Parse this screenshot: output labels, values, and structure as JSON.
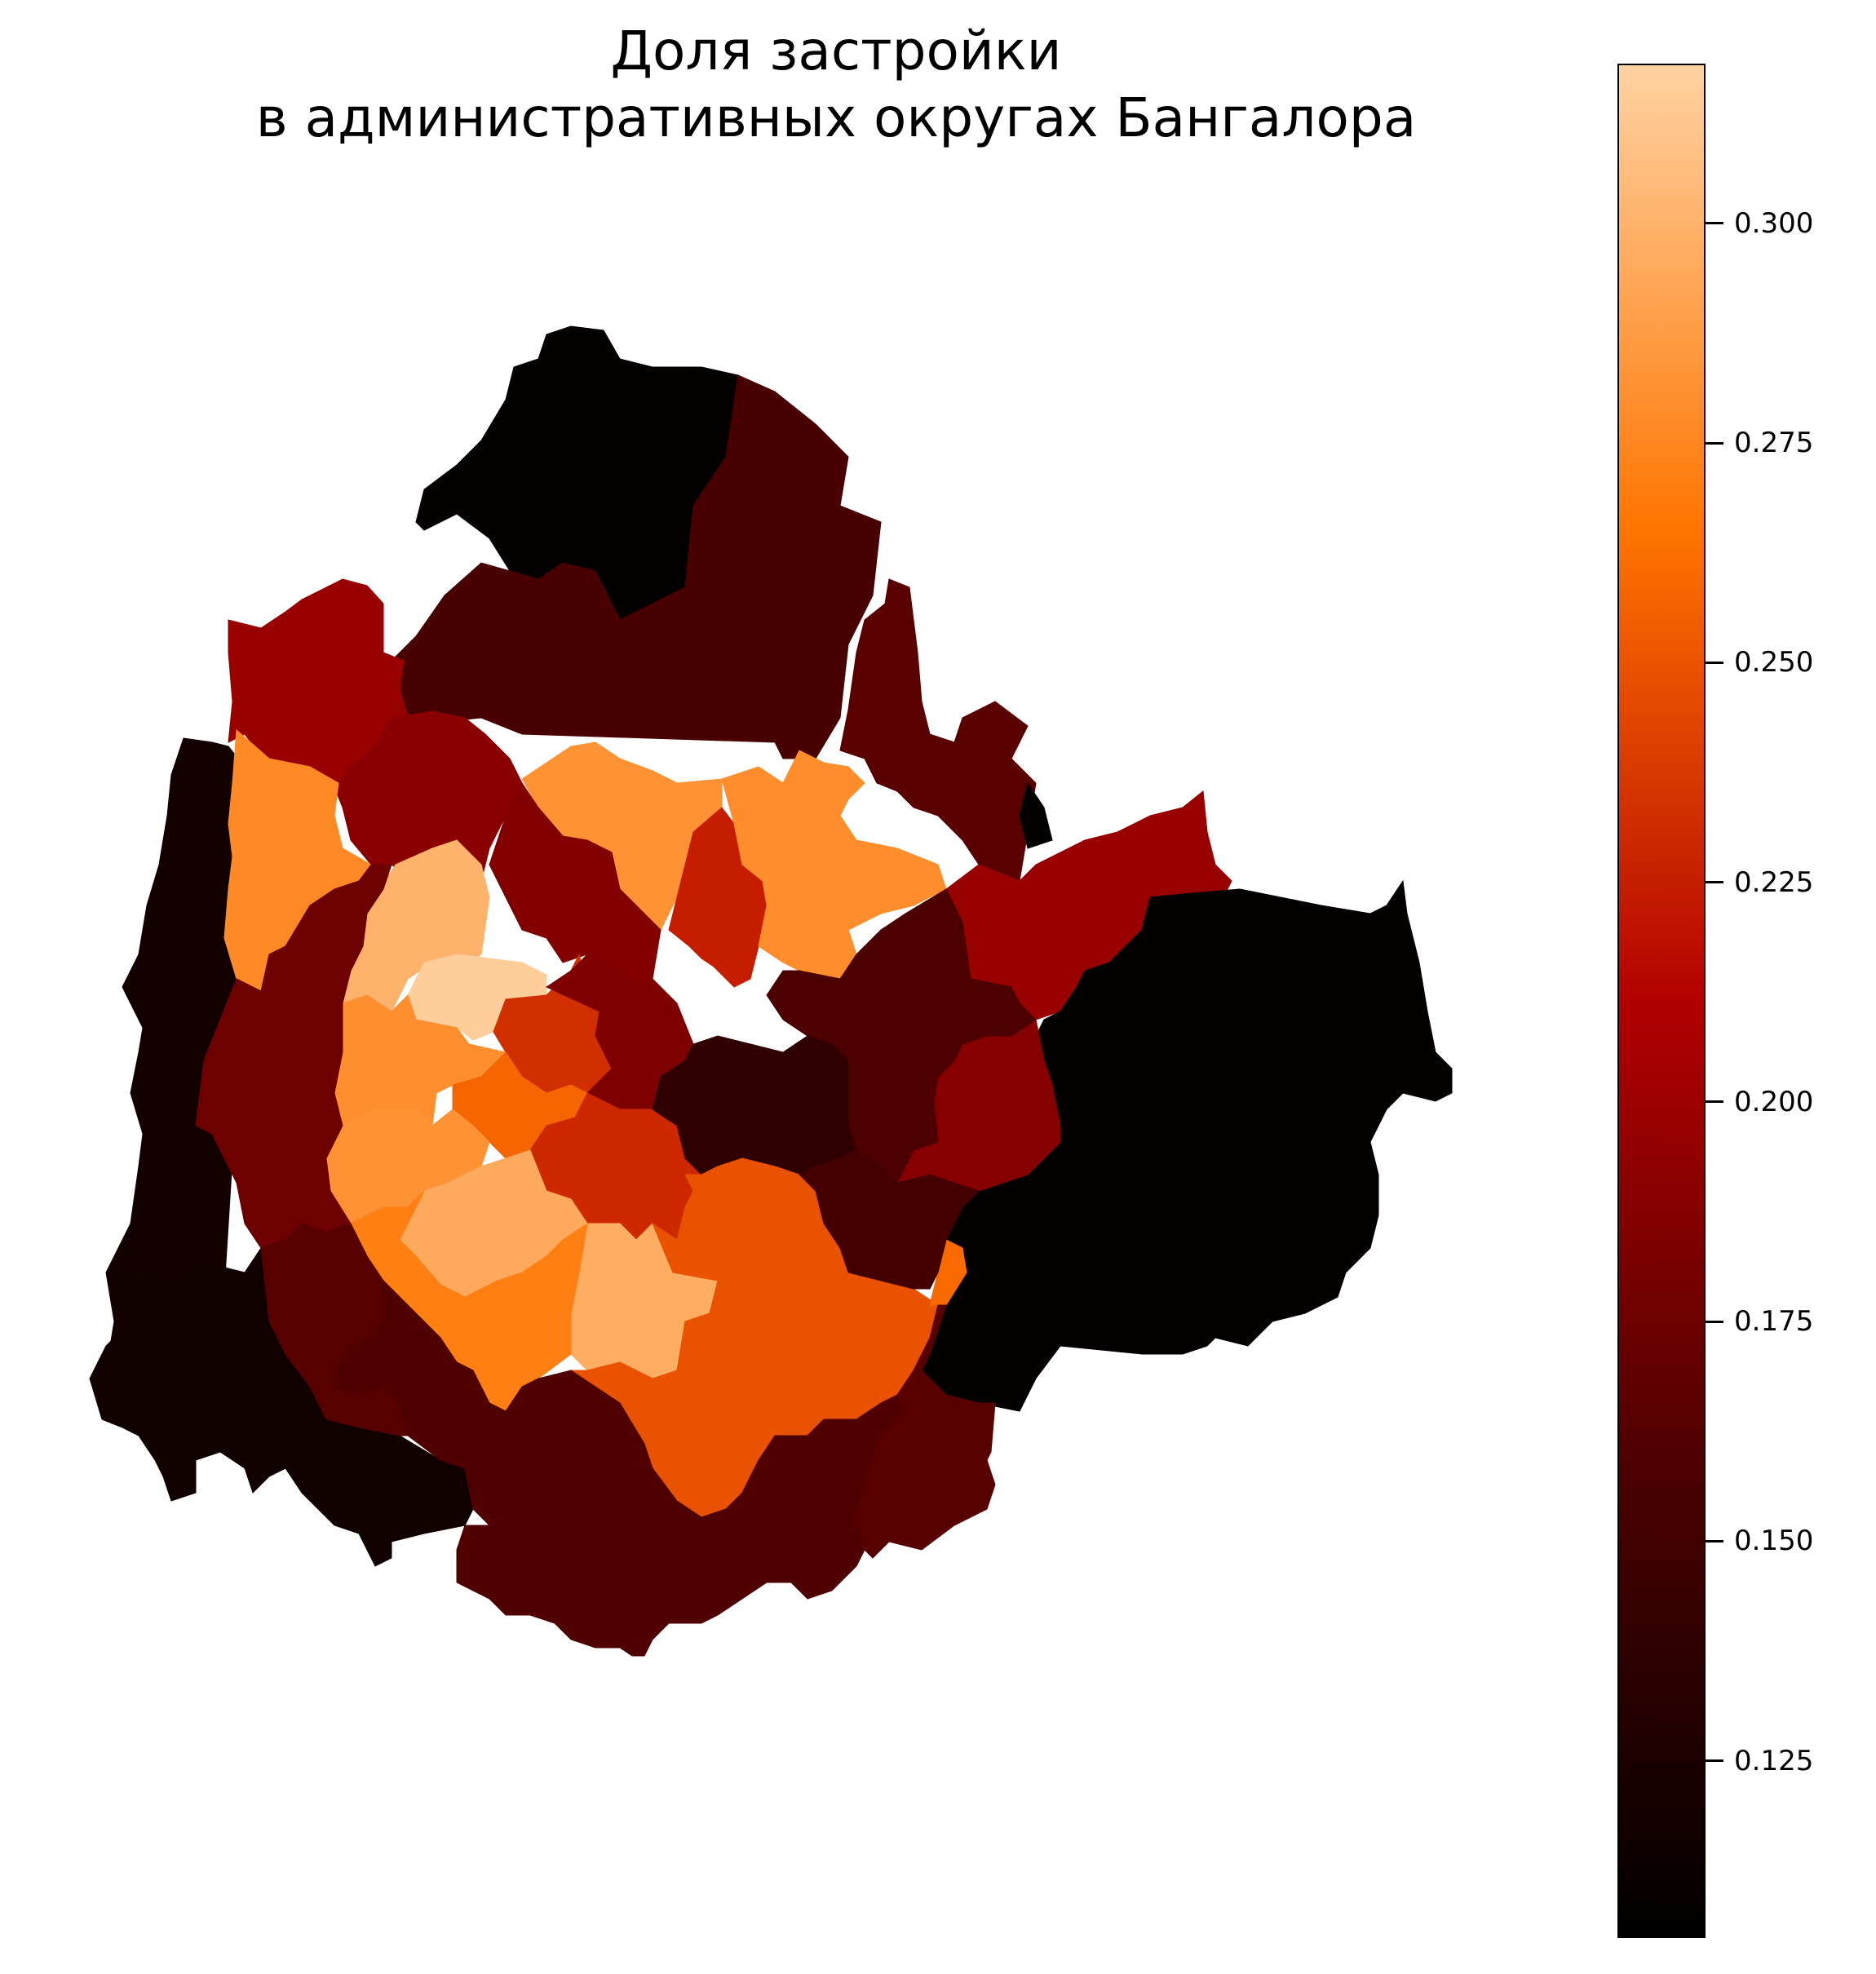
{
  "title": {
    "line1": "Доля застройки",
    "line2": "в административных округах Бангалора"
  },
  "colormap": {
    "name": "gist_heat",
    "stops": [
      "#000000",
      "#4d0000",
      "#b30000",
      "#ff7400",
      "#ffd2a2"
    ],
    "min": 0.105,
    "max": 0.318
  },
  "colorbar": {
    "ticks": [
      {
        "value": 0.125,
        "label": "0.125"
      },
      {
        "value": 0.15,
        "label": "0.150"
      },
      {
        "value": 0.175,
        "label": "0.175"
      },
      {
        "value": 0.2,
        "label": "0.200"
      },
      {
        "value": 0.225,
        "label": "0.225"
      },
      {
        "value": 0.25,
        "label": "0.250"
      },
      {
        "value": 0.275,
        "label": "0.275"
      },
      {
        "value": 0.3,
        "label": "0.300"
      }
    ]
  },
  "districts": [
    {
      "id": "north-top",
      "value": 0.108
    },
    {
      "id": "north-dark",
      "value": 0.155
    },
    {
      "id": "northeast-strip",
      "value": 0.165
    },
    {
      "id": "northwest-upper",
      "value": 0.198
    },
    {
      "id": "northwest-mid",
      "value": 0.19
    },
    {
      "id": "west-strip",
      "value": 0.118
    },
    {
      "id": "west-orange",
      "value": 0.277
    },
    {
      "id": "north-center-orange",
      "value": 0.282
    },
    {
      "id": "center-north-red",
      "value": 0.186
    },
    {
      "id": "center-red-small",
      "value": 0.225
    },
    {
      "id": "northeast-orange",
      "value": 0.279
    },
    {
      "id": "east-upper",
      "value": 0.198
    },
    {
      "id": "east-large",
      "value": 0.108
    },
    {
      "id": "east-small-patch",
      "value": 0.108
    },
    {
      "id": "east-mid",
      "value": 0.188
    },
    {
      "id": "center-east",
      "value": 0.158
    },
    {
      "id": "center-peach",
      "value": 0.3
    },
    {
      "id": "center-lightest",
      "value": 0.315
    },
    {
      "id": "center-orange-2",
      "value": 0.28
    },
    {
      "id": "center-red-3",
      "value": 0.233
    },
    {
      "id": "center-orange-red",
      "value": 0.258
    },
    {
      "id": "center-orange-3",
      "value": 0.282
    },
    {
      "id": "center-darkred",
      "value": 0.184
    },
    {
      "id": "center-red-4",
      "value": 0.23
    },
    {
      "id": "center-dark-2",
      "value": 0.138
    },
    {
      "id": "center-peach-2",
      "value": 0.295
    },
    {
      "id": "south-central-peach",
      "value": 0.297
    },
    {
      "id": "south-orange",
      "value": 0.271
    },
    {
      "id": "southeast-red",
      "value": 0.249
    },
    {
      "id": "southeast-sliver",
      "value": 0.26
    },
    {
      "id": "west-mid-red",
      "value": 0.175
    },
    {
      "id": "southwest-dark",
      "value": 0.117
    },
    {
      "id": "south-west-2",
      "value": 0.163
    },
    {
      "id": "south-center-dark",
      "value": 0.16
    },
    {
      "id": "south-dark",
      "value": 0.16
    },
    {
      "id": "southeast-dark",
      "value": 0.164
    },
    {
      "id": "east-center-dark",
      "value": 0.152
    }
  ]
}
